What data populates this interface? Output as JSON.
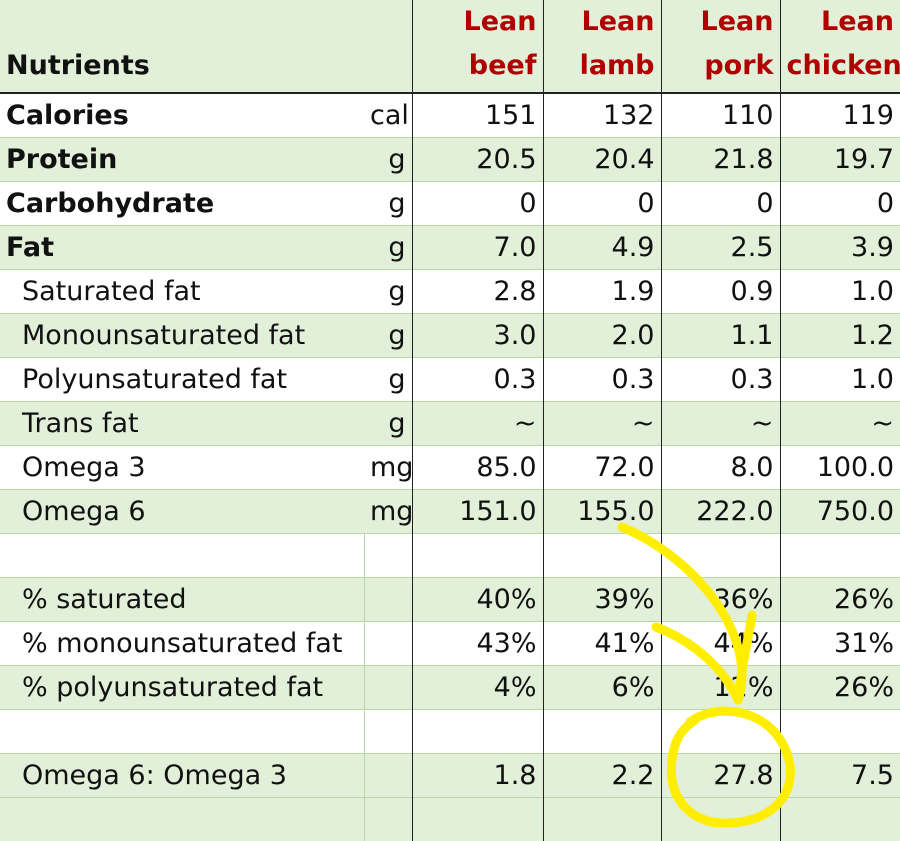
{
  "header": {
    "nutrients_label": "Nutrients",
    "columns": [
      {
        "line1": "Lean",
        "line2": "beef"
      },
      {
        "line1": "Lean",
        "line2": "lamb"
      },
      {
        "line1": "Lean",
        "line2": "pork"
      },
      {
        "line1": "Lean",
        "line2": "chicken"
      }
    ]
  },
  "rows": [
    {
      "label": "Calories",
      "unit": "cal",
      "values": [
        "151",
        "132",
        "110",
        "119"
      ]
    },
    {
      "label": "Protein",
      "unit": "g",
      "values": [
        "20.5",
        "20.4",
        "21.8",
        "19.7"
      ]
    },
    {
      "label": "Carbohydrate",
      "unit": "g",
      "values": [
        "0",
        "0",
        "0",
        "0"
      ]
    },
    {
      "label": "Fat",
      "unit": "g",
      "values": [
        "7.0",
        "4.9",
        "2.5",
        "3.9"
      ]
    },
    {
      "label": "Saturated fat",
      "unit": "g",
      "values": [
        "2.8",
        "1.9",
        "0.9",
        "1.0"
      ]
    },
    {
      "label": "Monounsaturated fat",
      "unit": "g",
      "values": [
        "3.0",
        "2.0",
        "1.1",
        "1.2"
      ]
    },
    {
      "label": "Polyunsaturated fat",
      "unit": "g",
      "values": [
        "0.3",
        "0.3",
        "0.3",
        "1.0"
      ]
    },
    {
      "label": "Trans fat",
      "unit": "g",
      "values": [
        "~",
        "~",
        "~",
        "~"
      ]
    },
    {
      "label": "Omega 3",
      "unit": "mg",
      "values": [
        "85.0",
        "72.0",
        "8.0",
        "100.0"
      ]
    },
    {
      "label": "Omega 6",
      "unit": "mg",
      "values": [
        "151.0",
        "155.0",
        "222.0",
        "750.0"
      ]
    },
    {
      "label": "",
      "unit": "",
      "values": [
        "",
        "",
        "",
        ""
      ]
    },
    {
      "label": "% saturated",
      "unit": "",
      "values": [
        "40%",
        "39%",
        "36%",
        "26%"
      ]
    },
    {
      "label": "% monounsaturated fat",
      "unit": "",
      "values": [
        "43%",
        "41%",
        "44%",
        "31%"
      ]
    },
    {
      "label": "% polyunsaturated fat",
      "unit": "",
      "values": [
        "4%",
        "6%",
        "12%",
        "26%"
      ]
    },
    {
      "label": "",
      "unit": "",
      "values": [
        "",
        "",
        "",
        ""
      ]
    },
    {
      "label": "Omega 6: Omega 3",
      "unit": "",
      "values": [
        "1.8",
        "2.2",
        "27.8",
        "7.5"
      ]
    },
    {
      "label": "",
      "unit": "",
      "values": [
        "",
        "",
        "",
        ""
      ]
    }
  ],
  "colors": {
    "header_text": "#b00000",
    "row_green": "#e2efd9",
    "annotation": "#ffee00"
  }
}
